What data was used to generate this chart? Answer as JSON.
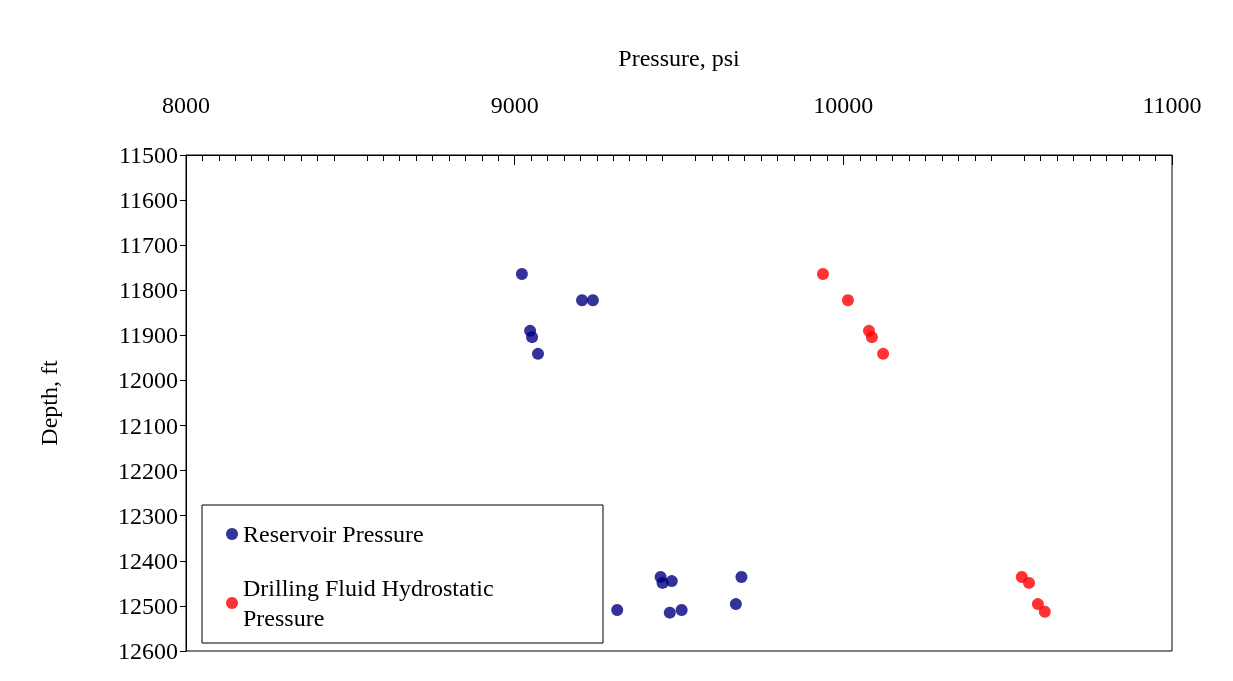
{
  "chart_data": {
    "type": "scatter",
    "xlabel": "Pressure, psi",
    "ylabel": "Depth, ft",
    "xlim": [
      8000,
      11000
    ],
    "xticks": [
      8000,
      9000,
      10000,
      11000
    ],
    "ylim": [
      12600,
      11500
    ],
    "yticks": [
      11500,
      11600,
      11700,
      11800,
      11900,
      12000,
      12100,
      12200,
      12300,
      12400,
      12500,
      12600
    ],
    "grid": false,
    "legend": "bottom left",
    "marker": "circle",
    "series": [
      {
        "name": "Reservoir Pressure",
        "color": "#000080",
        "x": [
          9022,
          9205,
          9238,
          9047,
          9053,
          9071,
          9444,
          9450,
          9478,
          9690,
          9312,
          9466,
          9472,
          9508,
          9673
        ],
        "values": [
          11764,
          11822,
          11822,
          11890,
          11904,
          11941,
          12436,
          12449,
          12445,
          12436,
          12509,
          null,
          12515,
          12509,
          12496
        ]
      },
      {
        "name": "Drilling Fluid Hydrostatic Pressure",
        "color": "#ff0000",
        "x": [
          9938,
          10014,
          10078,
          10087,
          10121,
          10543,
          10565,
          10592,
          10613
        ],
        "values": [
          11764,
          11822,
          11890,
          11904,
          11941,
          12436,
          12449,
          12496,
          12513
        ]
      }
    ]
  }
}
